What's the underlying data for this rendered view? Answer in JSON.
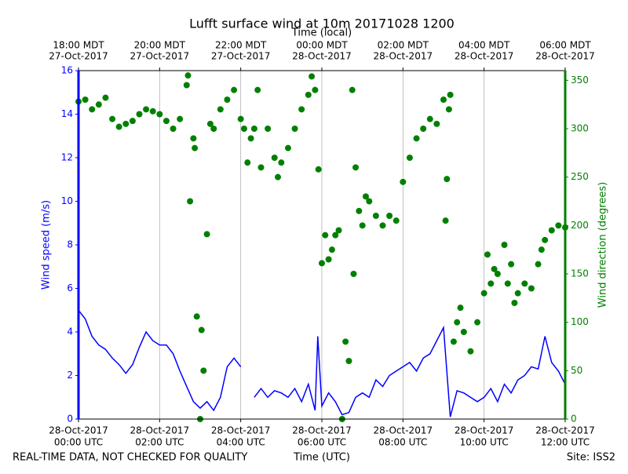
{
  "chart_data": {
    "type": "line",
    "title": "Lufft surface wind at 10m 20171028 1200",
    "xlabel": "Time (UTC)",
    "x2label": "Time (local)",
    "ylabel": "Wind speed (m/s)",
    "y2label": "Wind direction (degrees)",
    "footer_left": "REAL-TIME DATA, NOT CHECKED FOR QUALITY",
    "footer_right": "Site: ISS2",
    "xlim": [
      "2017-10-28T00:00",
      "2017-10-28T12:00"
    ],
    "xticks": [
      {
        "value": "2017-10-28T00:00",
        "label": [
          "28-Oct-2017",
          "00:00 UTC"
        ]
      },
      {
        "value": "2017-10-28T02:00",
        "label": [
          "28-Oct-2017",
          "02:00 UTC"
        ]
      },
      {
        "value": "2017-10-28T04:00",
        "label": [
          "28-Oct-2017",
          "04:00 UTC"
        ]
      },
      {
        "value": "2017-10-28T06:00",
        "label": [
          "28-Oct-2017",
          "06:00 UTC"
        ]
      },
      {
        "value": "2017-10-28T08:00",
        "label": [
          "28-Oct-2017",
          "08:00 UTC"
        ]
      },
      {
        "value": "2017-10-28T10:00",
        "label": [
          "28-Oct-2017",
          "10:00 UTC"
        ]
      },
      {
        "value": "2017-10-28T12:00",
        "label": [
          "28-Oct-2017",
          "12:00 UTC"
        ]
      }
    ],
    "x2ticks": [
      {
        "value": "2017-10-28T00:00",
        "label": [
          "18:00 MDT",
          "27-Oct-2017"
        ]
      },
      {
        "value": "2017-10-28T02:00",
        "label": [
          "20:00 MDT",
          "27-Oct-2017"
        ]
      },
      {
        "value": "2017-10-28T04:00",
        "label": [
          "22:00 MDT",
          "27-Oct-2017"
        ]
      },
      {
        "value": "2017-10-28T06:00",
        "label": [
          "00:00 MDT",
          "28-Oct-2017"
        ]
      },
      {
        "value": "2017-10-28T08:00",
        "label": [
          "02:00 MDT",
          "28-Oct-2017"
        ]
      },
      {
        "value": "2017-10-28T10:00",
        "label": [
          "04:00 MDT",
          "28-Oct-2017"
        ]
      },
      {
        "value": "2017-10-28T12:00",
        "label": [
          "06:00 MDT",
          "28-Oct-2017"
        ]
      }
    ],
    "ylim": [
      0,
      16
    ],
    "yticks": [
      0,
      2,
      4,
      6,
      8,
      10,
      12,
      14,
      16
    ],
    "y2lim": [
      0,
      360
    ],
    "y2ticks": [
      0,
      50,
      100,
      150,
      200,
      250,
      300,
      350
    ],
    "grid": true,
    "ycolor": "#0000ff",
    "y2color": "#008000",
    "series": [
      {
        "type": "line",
        "color": "#0000ff",
        "x": [
          "2017-10-28T00:00",
          "2017-10-28T00:10",
          "2017-10-28T00:20",
          "2017-10-28T00:30",
          "2017-10-28T00:40",
          "2017-10-28T00:50",
          "2017-10-28T01:00",
          "2017-10-28T01:10",
          "2017-10-28T01:20",
          "2017-10-28T01:30",
          "2017-10-28T01:40",
          "2017-10-28T01:50",
          "2017-10-28T02:00",
          "2017-10-28T02:10",
          "2017-10-28T02:20",
          "2017-10-28T02:30",
          "2017-10-28T02:40",
          "2017-10-28T02:50",
          "2017-10-28T03:00",
          "2017-10-28T03:10",
          "2017-10-28T03:20",
          "2017-10-28T03:30",
          "2017-10-28T03:40",
          "2017-10-28T03:50",
          "2017-10-28T04:00",
          "2017-10-28T04:10",
          "2017-10-28T04:20",
          "2017-10-28T04:30",
          "2017-10-28T04:40",
          "2017-10-28T04:50",
          "2017-10-28T05:00",
          "2017-10-28T05:10",
          "2017-10-28T05:20",
          "2017-10-28T05:30",
          "2017-10-28T05:40",
          "2017-10-28T05:50",
          "2017-10-28T05:54",
          "2017-10-28T06:00",
          "2017-10-28T06:10",
          "2017-10-28T06:20",
          "2017-10-28T06:30",
          "2017-10-28T06:40",
          "2017-10-28T06:50",
          "2017-10-28T07:00",
          "2017-10-28T07:10",
          "2017-10-28T07:20",
          "2017-10-28T07:30",
          "2017-10-28T07:40",
          "2017-10-28T07:50",
          "2017-10-28T08:00",
          "2017-10-28T08:10",
          "2017-10-28T08:20",
          "2017-10-28T08:30",
          "2017-10-28T08:40",
          "2017-10-28T08:50",
          "2017-10-28T09:00",
          "2017-10-28T09:10",
          "2017-10-28T09:20",
          "2017-10-28T09:30",
          "2017-10-28T09:40",
          "2017-10-28T09:50",
          "2017-10-28T10:00",
          "2017-10-28T10:10",
          "2017-10-28T10:20",
          "2017-10-28T10:30",
          "2017-10-28T10:40",
          "2017-10-28T10:50",
          "2017-10-28T11:00",
          "2017-10-28T11:10",
          "2017-10-28T11:20",
          "2017-10-28T11:30",
          "2017-10-28T11:40",
          "2017-10-28T11:50",
          "2017-10-28T12:00"
        ],
        "values": [
          5.0,
          4.6,
          3.8,
          3.4,
          3.2,
          2.8,
          2.5,
          2.1,
          2.5,
          3.3,
          4.0,
          3.6,
          3.4,
          3.4,
          3.0,
          2.2,
          1.5,
          0.8,
          0.5,
          0.8,
          0.4,
          1.0,
          2.4,
          2.8,
          2.4,
          null,
          1.0,
          1.4,
          1.0,
          1.3,
          1.2,
          1.0,
          1.4,
          0.8,
          1.6,
          0.4,
          3.8,
          0.6,
          1.2,
          0.8,
          0.2,
          0.3,
          1.0,
          1.2,
          1.0,
          1.8,
          1.5,
          2.0,
          2.2,
          2.4,
          2.6,
          2.2,
          2.8,
          3.0,
          3.6,
          4.2,
          0.1,
          1.3,
          1.2,
          1.0,
          0.8,
          1.0,
          1.4,
          0.8,
          1.6,
          1.2,
          1.8,
          2.0,
          2.4,
          2.3,
          3.8,
          2.6,
          2.2,
          1.6
        ]
      },
      {
        "type": "scatter",
        "axis": "y2",
        "color": "#008000",
        "x": [
          "2017-10-28T00:00",
          "2017-10-28T00:10",
          "2017-10-28T00:20",
          "2017-10-28T00:30",
          "2017-10-28T00:40",
          "2017-10-28T00:50",
          "2017-10-28T01:00",
          "2017-10-28T01:10",
          "2017-10-28T01:20",
          "2017-10-28T01:30",
          "2017-10-28T01:40",
          "2017-10-28T01:50",
          "2017-10-28T02:00",
          "2017-10-28T02:10",
          "2017-10-28T02:20",
          "2017-10-28T02:30",
          "2017-10-28T02:40",
          "2017-10-28T02:42",
          "2017-10-28T02:45",
          "2017-10-28T02:50",
          "2017-10-28T02:52",
          "2017-10-28T02:55",
          "2017-10-28T03:00",
          "2017-10-28T03:02",
          "2017-10-28T03:05",
          "2017-10-28T03:10",
          "2017-10-28T03:15",
          "2017-10-28T03:20",
          "2017-10-28T03:30",
          "2017-10-28T03:40",
          "2017-10-28T03:50",
          "2017-10-28T04:00",
          "2017-10-28T04:05",
          "2017-10-28T04:10",
          "2017-10-28T04:15",
          "2017-10-28T04:20",
          "2017-10-28T04:25",
          "2017-10-28T04:30",
          "2017-10-28T04:40",
          "2017-10-28T04:50",
          "2017-10-28T04:55",
          "2017-10-28T05:00",
          "2017-10-28T05:10",
          "2017-10-28T05:20",
          "2017-10-28T05:30",
          "2017-10-28T05:40",
          "2017-10-28T05:45",
          "2017-10-28T05:50",
          "2017-10-28T05:55",
          "2017-10-28T06:00",
          "2017-10-28T06:05",
          "2017-10-28T06:10",
          "2017-10-28T06:15",
          "2017-10-28T06:20",
          "2017-10-28T06:25",
          "2017-10-28T06:30",
          "2017-10-28T06:35",
          "2017-10-28T06:40",
          "2017-10-28T06:45",
          "2017-10-28T06:47",
          "2017-10-28T06:50",
          "2017-10-28T06:55",
          "2017-10-28T07:00",
          "2017-10-28T07:05",
          "2017-10-28T07:10",
          "2017-10-28T07:20",
          "2017-10-28T07:30",
          "2017-10-28T07:40",
          "2017-10-28T07:50",
          "2017-10-28T08:00",
          "2017-10-28T08:10",
          "2017-10-28T08:20",
          "2017-10-28T08:30",
          "2017-10-28T08:40",
          "2017-10-28T08:50",
          "2017-10-28T09:00",
          "2017-10-28T09:03",
          "2017-10-28T09:05",
          "2017-10-28T09:08",
          "2017-10-28T09:10",
          "2017-10-28T09:15",
          "2017-10-28T09:20",
          "2017-10-28T09:25",
          "2017-10-28T09:30",
          "2017-10-28T09:40",
          "2017-10-28T09:50",
          "2017-10-28T10:00",
          "2017-10-28T10:05",
          "2017-10-28T10:10",
          "2017-10-28T10:15",
          "2017-10-28T10:20",
          "2017-10-28T10:30",
          "2017-10-28T10:35",
          "2017-10-28T10:40",
          "2017-10-28T10:45",
          "2017-10-28T10:50",
          "2017-10-28T11:00",
          "2017-10-28T11:10",
          "2017-10-28T11:20",
          "2017-10-28T11:25",
          "2017-10-28T11:30",
          "2017-10-28T11:40",
          "2017-10-28T11:50",
          "2017-10-28T12:00"
        ],
        "values": [
          328,
          330,
          320,
          325,
          332,
          310,
          302,
          305,
          308,
          315,
          320,
          318,
          315,
          308,
          300,
          310,
          345,
          355,
          225,
          290,
          280,
          106,
          0,
          92,
          50,
          191,
          305,
          300,
          320,
          330,
          340,
          310,
          300,
          265,
          290,
          300,
          340,
          260,
          300,
          270,
          250,
          265,
          280,
          300,
          320,
          335,
          354,
          340,
          258,
          161,
          190,
          165,
          175,
          190,
          195,
          0,
          80,
          60,
          340,
          150,
          260,
          215,
          200,
          230,
          225,
          210,
          200,
          210,
          205,
          245,
          270,
          290,
          300,
          310,
          305,
          330,
          205,
          248,
          320,
          335,
          80,
          100,
          115,
          90,
          70,
          100,
          130,
          170,
          140,
          155,
          150,
          180,
          140,
          160,
          120,
          130,
          140,
          135,
          160,
          175,
          185,
          195,
          200,
          198
        ]
      }
    ]
  }
}
